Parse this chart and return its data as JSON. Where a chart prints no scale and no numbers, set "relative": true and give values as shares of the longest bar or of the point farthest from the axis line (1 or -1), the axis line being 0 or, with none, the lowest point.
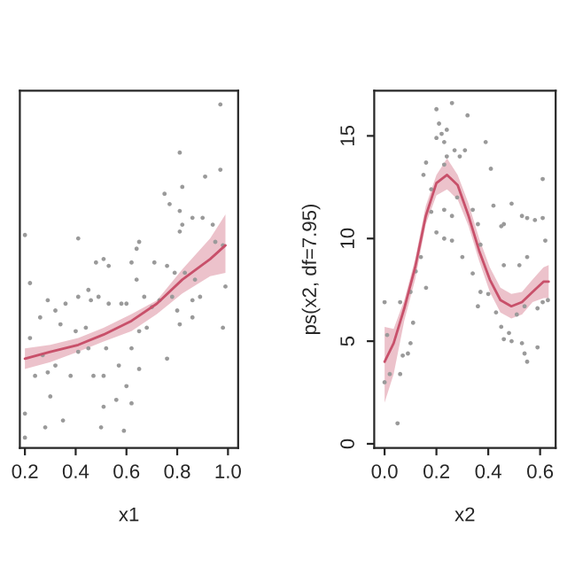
{
  "chart_data": [
    {
      "type": "scatter",
      "xlabel": "x1",
      "relative": true,
      "tick_labels": "x",
      "xlim": [
        0.18,
        1.04
      ],
      "xticks": [
        0.2,
        0.4,
        0.6,
        0.8,
        {
          "value": 1.0,
          "label": "1.0"
        }
      ],
      "grid": false,
      "series": [
        {
          "marker": "circle",
          "color": "#9a9a9a",
          "x": [
            0.97,
            0.81,
            0.91,
            0.97,
            0.75,
            0.77,
            0.82,
            0.81,
            0.82,
            0.86,
            0.9,
            0.81,
            0.94,
            0.95,
            0.98,
            0.99,
            0.98,
            0.41,
            0.65,
            0.64,
            0.62,
            0.48,
            0.51,
            0.53,
            0.71,
            0.76,
            0.79,
            0.83,
            0.87,
            0.86,
            0.89,
            0.78,
            0.8,
            0.73,
            0.7,
            0.67,
            0.64,
            0.6,
            0.68,
            0.65,
            0.58,
            0.53,
            0.49,
            0.45,
            0.41,
            0.46,
            0.36,
            0.32,
            0.29,
            0.26,
            0.34,
            0.4,
            0.44,
            0.41,
            0.45,
            0.52,
            0.57,
            0.62,
            0.65,
            0.6,
            0.56,
            0.51,
            0.47,
            0.38,
            0.32,
            0.29,
            0.24,
            0.3,
            0.22,
            0.2,
            0.28,
            0.35,
            0.5,
            0.59,
            0.2,
            0.62,
            0.51,
            0.76,
            0.81,
            0.86,
            0.27,
            0.2,
            0.22
          ],
          "values": [
            1.0,
            0.86,
            0.79,
            0.81,
            0.74,
            0.71,
            0.76,
            0.69,
            0.65,
            0.67,
            0.67,
            0.63,
            0.65,
            0.6,
            0.59,
            0.47,
            0.35,
            0.61,
            0.6,
            0.58,
            0.54,
            0.54,
            0.55,
            0.53,
            0.54,
            0.53,
            0.51,
            0.51,
            0.49,
            0.43,
            0.44,
            0.44,
            0.4,
            0.43,
            0.41,
            0.44,
            0.49,
            0.42,
            0.35,
            0.34,
            0.42,
            0.42,
            0.44,
            0.46,
            0.44,
            0.43,
            0.42,
            0.4,
            0.43,
            0.38,
            0.36,
            0.34,
            0.35,
            0.28,
            0.29,
            0.29,
            0.24,
            0.29,
            0.23,
            0.18,
            0.14,
            0.21,
            0.21,
            0.21,
            0.24,
            0.22,
            0.21,
            0.15,
            0.32,
            0.1,
            0.06,
            0.08,
            0.06,
            0.05,
            0.03,
            0.13,
            0.12,
            0.26,
            0.36,
            0.38,
            0.27,
            0.62,
            0.48
          ]
        },
        {
          "type": "line",
          "color": "#c8506a",
          "x": [
            0.2,
            0.3,
            0.41,
            0.51,
            0.62,
            0.72,
            0.82,
            0.93,
            0.99
          ],
          "values": [
            0.26,
            0.28,
            0.3,
            0.33,
            0.37,
            0.42,
            0.49,
            0.55,
            0.59
          ],
          "lower": [
            0.23,
            0.25,
            0.28,
            0.31,
            0.34,
            0.39,
            0.45,
            0.5,
            0.51
          ],
          "upper": [
            0.29,
            0.3,
            0.32,
            0.35,
            0.39,
            0.43,
            0.52,
            0.61,
            0.68
          ]
        }
      ]
    },
    {
      "type": "scatter",
      "xlabel": "x2",
      "ylabel": "ps(x2, df=7.95)",
      "xlim": [
        -0.04,
        0.66
      ],
      "xticks": [
        {
          "value": 0.0,
          "label": "0.0"
        },
        0.2,
        0.4,
        0.6
      ],
      "ylim": [
        -0.2,
        17.2
      ],
      "yticks": [
        0,
        5,
        10,
        15
      ],
      "grid": false,
      "series": [
        {
          "marker": "circle",
          "color": "#9a9a9a",
          "x": [
            0.0,
            0.01,
            0.02,
            0.0,
            0.06,
            0.07,
            0.06,
            0.05,
            0.09,
            0.1,
            0.11,
            0.1,
            0.12,
            0.14,
            0.16,
            0.15,
            0.16,
            0.18,
            0.18,
            0.2,
            0.2,
            0.21,
            0.22,
            0.23,
            0.24,
            0.26,
            0.23,
            0.24,
            0.27,
            0.29,
            0.31,
            0.32,
            0.26,
            0.23,
            0.2,
            0.23,
            0.26,
            0.3,
            0.28,
            0.34,
            0.39,
            0.36,
            0.37,
            0.34,
            0.37,
            0.36,
            0.4,
            0.42,
            0.41,
            0.45,
            0.46,
            0.46,
            0.43,
            0.45,
            0.46,
            0.48,
            0.49,
            0.49,
            0.53,
            0.55,
            0.58,
            0.61,
            0.61,
            0.55,
            0.52,
            0.51,
            0.54,
            0.59,
            0.61,
            0.63,
            0.54,
            0.55,
            0.53,
            0.62,
            0.59
          ],
          "values": [
            6.9,
            5.3,
            3.4,
            3.0,
            6.9,
            4.3,
            3.4,
            1.0,
            4.4,
            4.9,
            5.9,
            7.4,
            8.4,
            9.1,
            7.6,
            13.1,
            13.7,
            12.4,
            11.3,
            16.3,
            14.9,
            15.6,
            15.1,
            14.7,
            15.3,
            16.6,
            13.6,
            14.0,
            14.3,
            14.0,
            14.3,
            16.0,
            11.1,
            11.4,
            10.3,
            10.0,
            9.9,
            9.1,
            12.0,
            11.4,
            14.7,
            10.7,
            9.7,
            8.3,
            7.4,
            6.7,
            7.3,
            11.6,
            13.4,
            10.6,
            10.7,
            8.7,
            6.4,
            5.7,
            5.1,
            5.4,
            5.0,
            11.7,
            11.1,
            11.0,
            10.9,
            11.0,
            12.9,
            9.1,
            8.7,
            6.3,
            6.7,
            6.6,
            6.9,
            7.0,
            4.4,
            4.0,
            4.9,
            9.9,
            4.7
          ]
        },
        {
          "type": "line",
          "color": "#c8506a",
          "x": [
            0.0,
            0.035,
            0.076,
            0.118,
            0.159,
            0.2,
            0.241,
            0.282,
            0.324,
            0.365,
            0.406,
            0.447,
            0.489,
            0.53,
            0.571,
            0.613,
            0.633
          ],
          "values": [
            4.0,
            4.9,
            6.6,
            8.6,
            11.1,
            12.7,
            13.1,
            12.6,
            11.1,
            9.4,
            8.0,
            7.0,
            6.7,
            6.9,
            7.4,
            7.9,
            7.9
          ],
          "lower": [
            2.0,
            3.4,
            6.0,
            8.0,
            10.7,
            12.1,
            12.4,
            11.9,
            10.6,
            8.9,
            7.4,
            6.4,
            6.1,
            6.3,
            6.9,
            7.1,
            7.1
          ],
          "upper": [
            5.7,
            5.6,
            7.0,
            9.0,
            11.6,
            13.1,
            13.9,
            13.1,
            11.7,
            10.0,
            8.6,
            7.6,
            7.3,
            7.4,
            8.0,
            8.6,
            8.7
          ]
        }
      ]
    }
  ]
}
